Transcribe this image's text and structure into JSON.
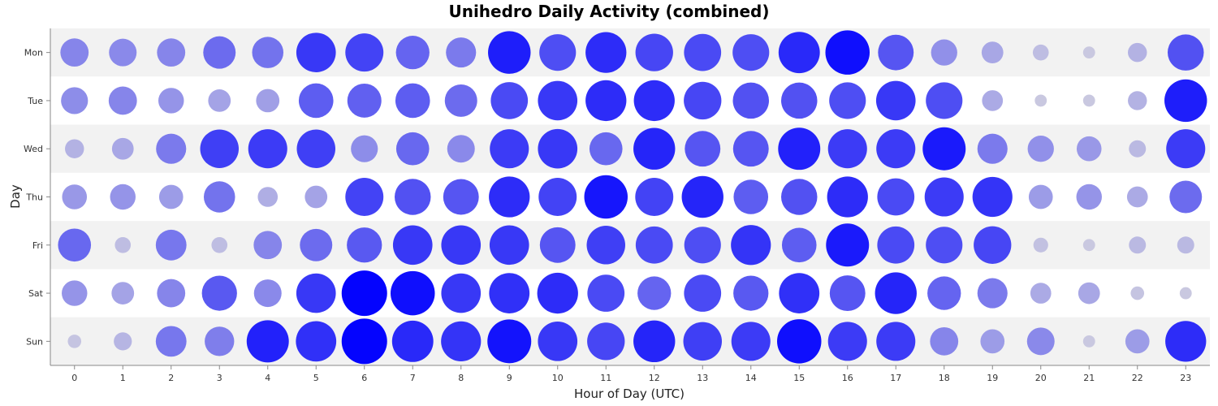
{
  "chart_data": {
    "type": "scatter",
    "title": "Unihedro Daily Activity (combined)",
    "xlabel": "Hour of Day (UTC)",
    "ylabel": "Day",
    "categories_x": [
      "0",
      "1",
      "2",
      "3",
      "4",
      "5",
      "6",
      "7",
      "8",
      "9",
      "10",
      "11",
      "12",
      "13",
      "14",
      "15",
      "16",
      "17",
      "18",
      "19",
      "20",
      "21",
      "22",
      "23"
    ],
    "categories_y": [
      "Mon",
      "Tue",
      "Wed",
      "Thu",
      "Fri",
      "Sat",
      "Sun"
    ],
    "grid": "alternating row bands",
    "legend": "none",
    "colors": {
      "low": "#c9c8e0",
      "high": "#0000ff",
      "band": "#f2f2f2",
      "axis": "#888888"
    },
    "size_scale_max": 10,
    "values": [
      [
        2.2,
        2.1,
        2.2,
        2.9,
        2.7,
        4.3,
        4.0,
        3.1,
        2.5,
        5.0,
        3.7,
        4.6,
        3.9,
        3.8,
        3.7,
        4.7,
        5.4,
        3.5,
        1.9,
        1.3,
        0.7,
        0.4,
        1.0,
        3.6
      ],
      [
        2.0,
        2.2,
        1.8,
        1.4,
        1.5,
        3.3,
        3.2,
        3.3,
        2.9,
        3.8,
        4.3,
        4.6,
        4.6,
        3.9,
        3.6,
        3.6,
        3.7,
        4.3,
        3.7,
        1.2,
        0.4,
        0.4,
        1.0,
        5.0
      ],
      [
        1.0,
        1.3,
        2.5,
        4.1,
        4.2,
        4.1,
        2.0,
        3.0,
        2.1,
        4.2,
        4.3,
        3.0,
        4.8,
        3.5,
        3.5,
        4.9,
        4.2,
        4.2,
        5.1,
        2.5,
        1.9,
        1.7,
        0.8,
        4.2
      ],
      [
        1.7,
        1.8,
        1.6,
        2.7,
        1.1,
        1.4,
        4.0,
        3.6,
        3.5,
        4.6,
        4.0,
        5.2,
        4.0,
        4.8,
        3.3,
        3.6,
        4.6,
        3.8,
        4.2,
        4.4,
        1.6,
        1.8,
        1.2,
        2.9
      ],
      [
        3.0,
        0.7,
        2.6,
        0.7,
        2.2,
        2.9,
        3.4,
        4.3,
        4.3,
        4.3,
        3.5,
        4.1,
        3.8,
        3.7,
        4.4,
        3.3,
        5.1,
        3.8,
        3.7,
        3.9,
        0.6,
        0.4,
        0.8,
        0.8
      ],
      [
        1.8,
        1.4,
        2.2,
        3.4,
        2.1,
        4.3,
        5.7,
        5.4,
        4.3,
        4.5,
        4.6,
        3.8,
        3.1,
        3.8,
        3.4,
        4.5,
        3.5,
        4.8,
        3.1,
        2.5,
        1.2,
        1.3,
        0.5,
        0.4
      ],
      [
        0.5,
        0.9,
        2.6,
        2.4,
        4.9,
        4.5,
        5.7,
        4.7,
        4.4,
        5.3,
        4.3,
        3.9,
        4.8,
        4.1,
        4.2,
        5.4,
        4.2,
        4.2,
        2.2,
        1.6,
        2.1,
        0.4,
        1.6,
        4.6
      ]
    ]
  }
}
